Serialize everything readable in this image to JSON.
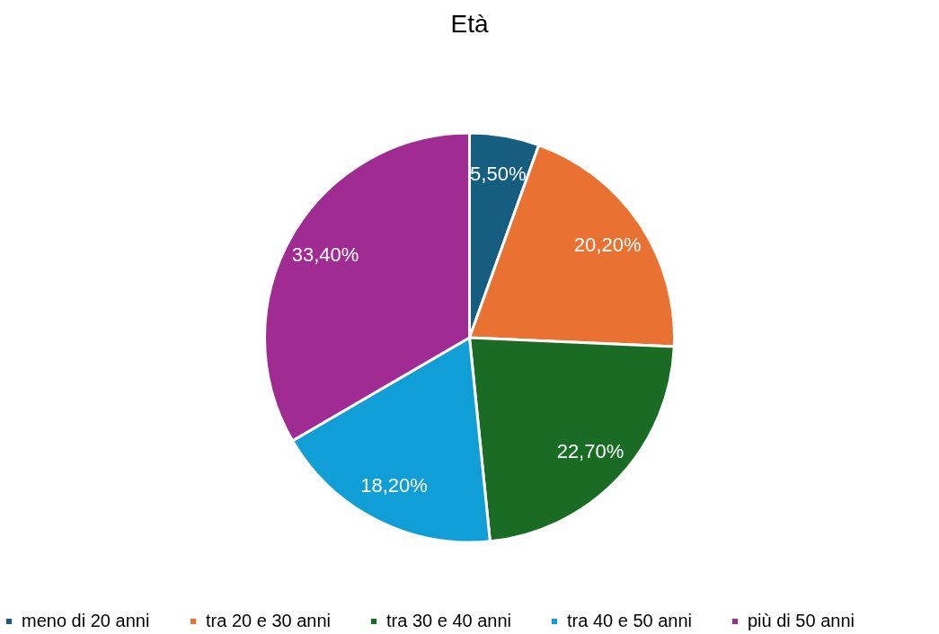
{
  "chart_data": {
    "type": "pie",
    "title": "Età",
    "categories": [
      "meno di 20 anni",
      "tra 20 e 30 anni",
      "tra 30 e 40 anni",
      "tra 40 e 50 anni",
      "più di 50 anni"
    ],
    "values": [
      5.5,
      20.2,
      22.7,
      18.2,
      33.4
    ],
    "colors": [
      "#165e80",
      "#e97132",
      "#1a6b24",
      "#0f9ed5",
      "#a02b93"
    ],
    "value_labels": [
      "5,50%",
      "20,20%",
      "22,70%",
      "18,20%",
      "33,40%"
    ],
    "legend": "bottom"
  }
}
